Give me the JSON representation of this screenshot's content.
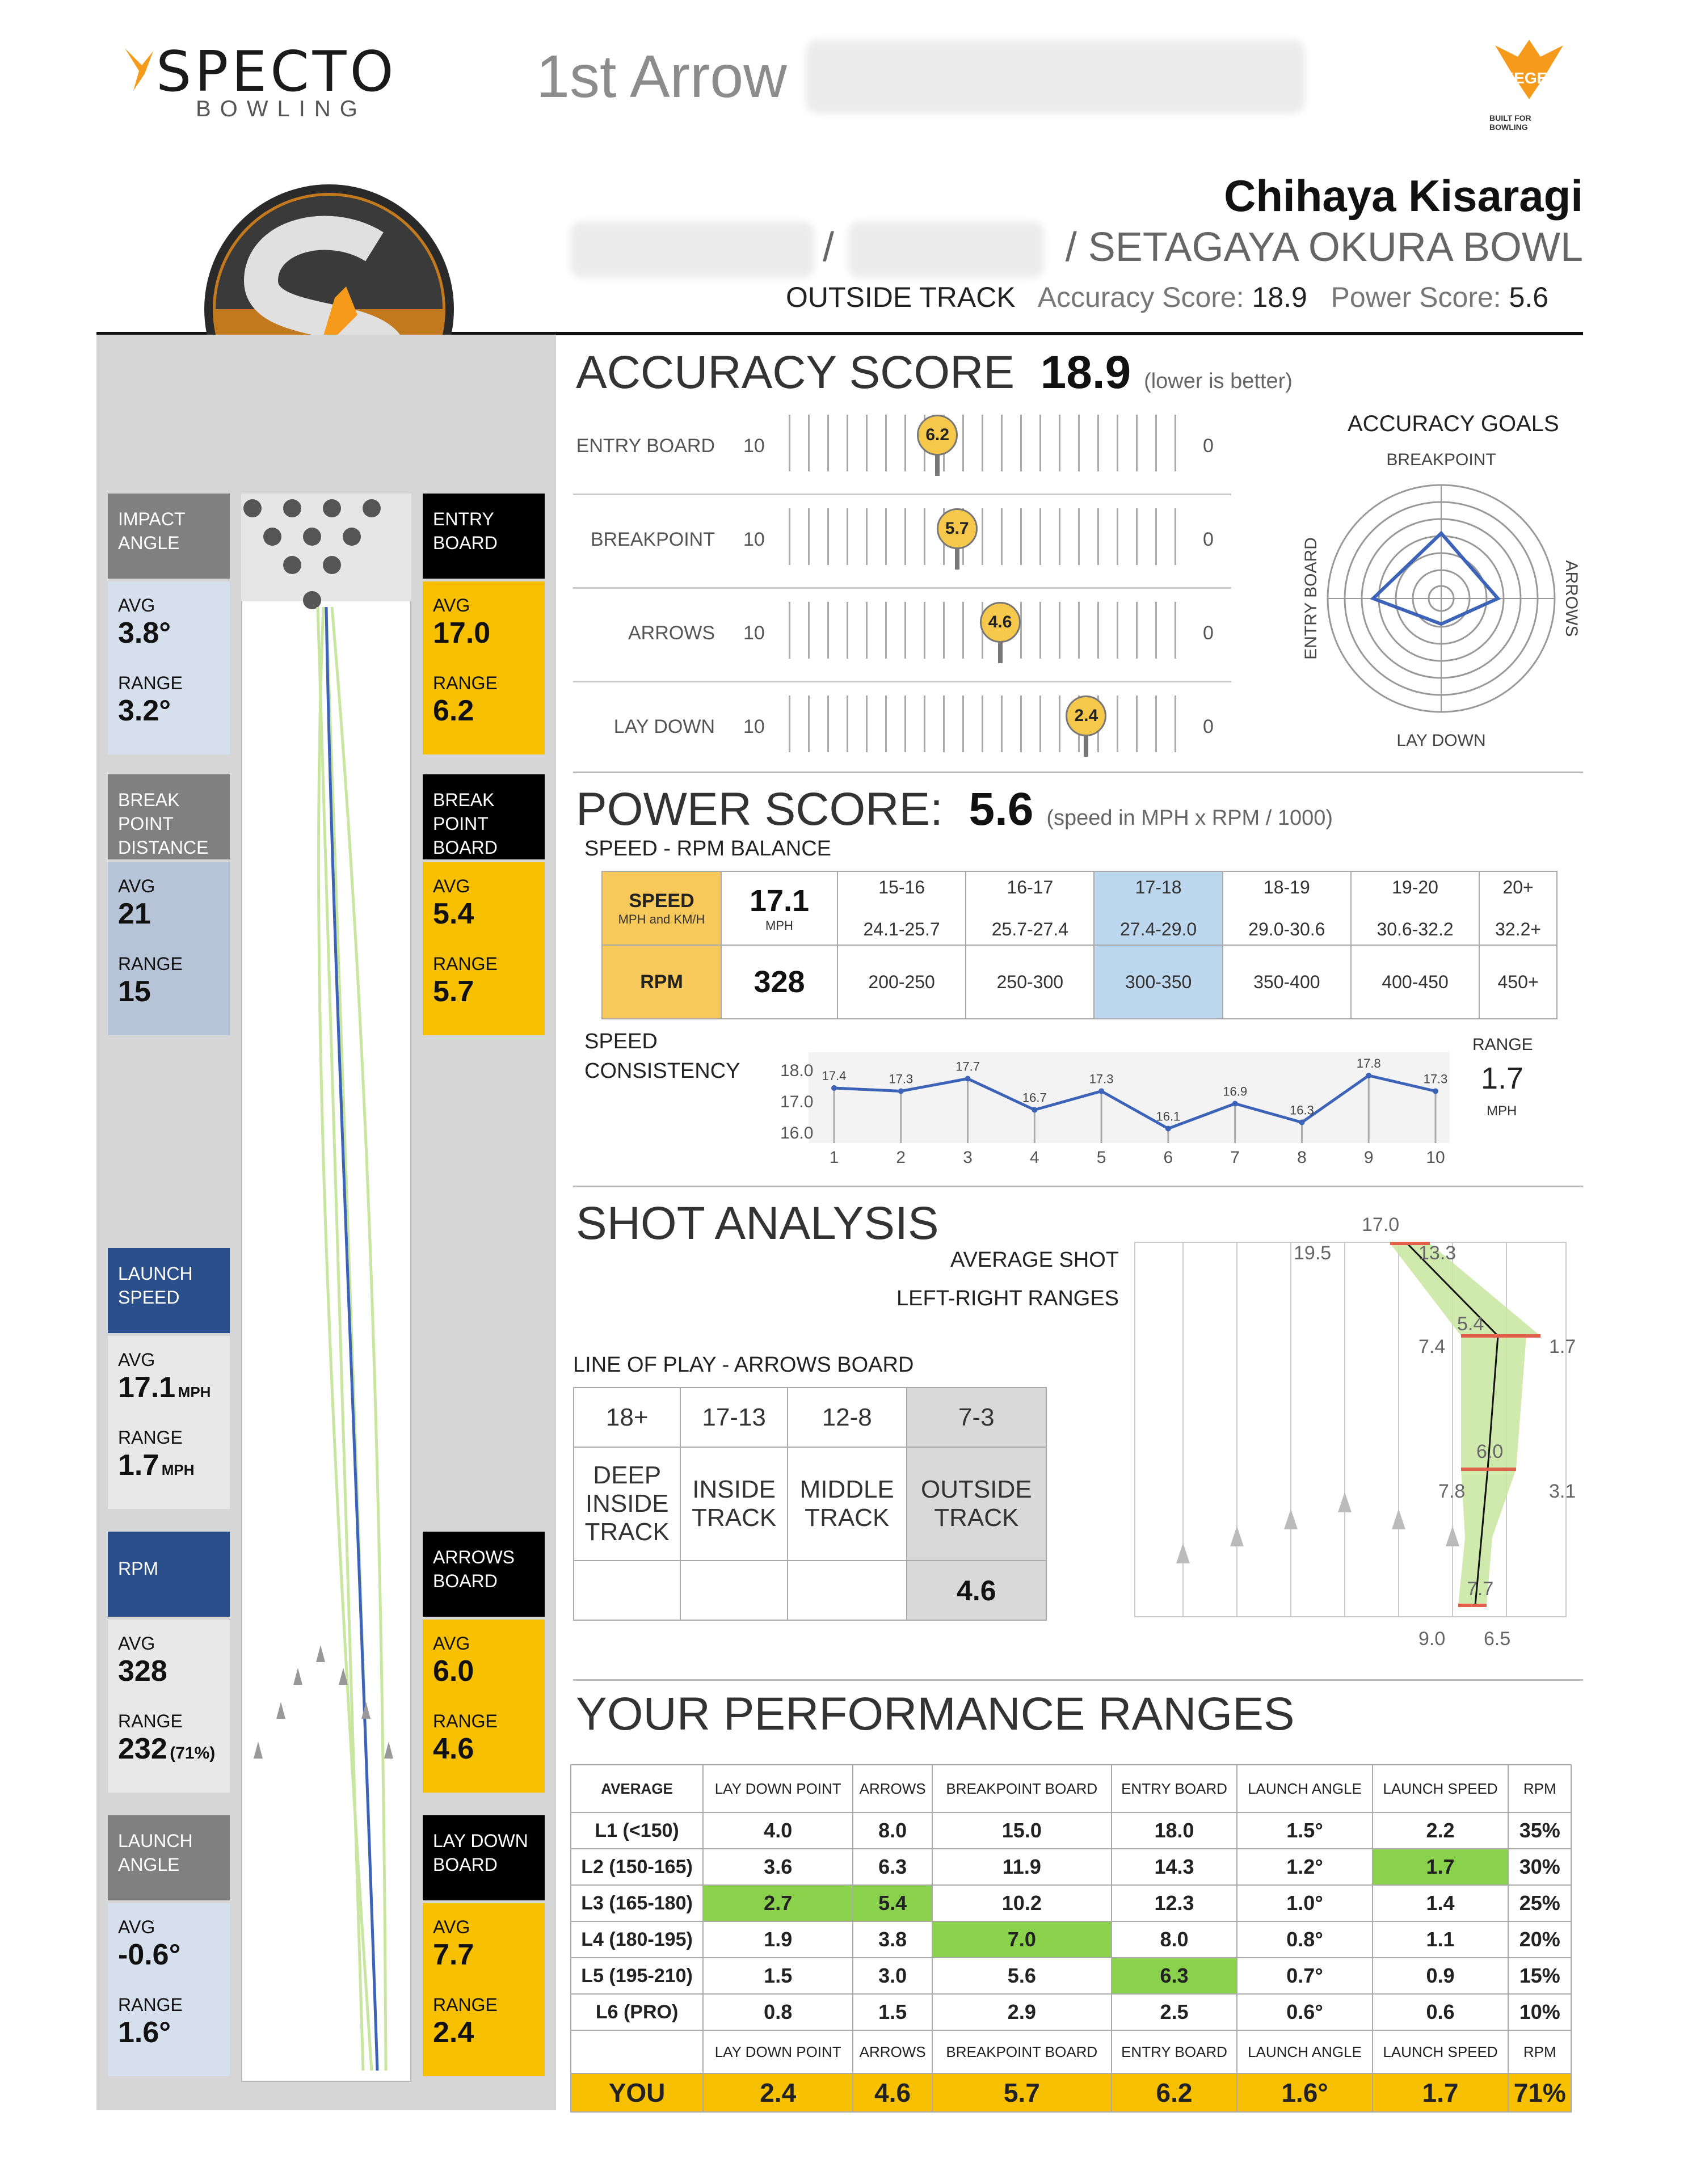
{
  "brand": {
    "name": "SPECTO",
    "sub": "BOWLING"
  },
  "header": {
    "title": "1st Arrow",
    "kegel_tag": "KEGEL",
    "kegel_sub": "BUILT FOR BOWLING"
  },
  "bowler": {
    "name": "Chihaya Kisaragi",
    "center_sep": "/",
    "center_sep2": "/ SETAGAYA OKURA BOWL",
    "track": "OUTSIDE TRACK",
    "accuracy_label": "Accuracy Score:",
    "accuracy": "18.9",
    "power_label": "Power Score:",
    "power": "5.6"
  },
  "left": {
    "impact": {
      "head": [
        "IMPACT",
        "ANGLE"
      ],
      "avg_k": "AVG",
      "avg": "3.8°",
      "range_k": "RANGE",
      "range": "3.2°"
    },
    "bpd": {
      "head": [
        "BREAK",
        "POINT",
        "DISTANCE"
      ],
      "avg_k": "AVG",
      "avg": "21",
      "range_k": "RANGE",
      "range": "15"
    },
    "speed": {
      "head": [
        "LAUNCH",
        "SPEED"
      ],
      "avg_k": "AVG",
      "avg": "17.1",
      "avg_u": "MPH",
      "range_k": "RANGE",
      "range": "1.7",
      "range_u": "MPH"
    },
    "rpm": {
      "head": [
        "RPM"
      ],
      "avg_k": "AVG",
      "avg": "328",
      "range_k": "RANGE",
      "range": "232",
      "range_u": "(71%)"
    },
    "launch": {
      "head": [
        "LAUNCH",
        "ANGLE"
      ],
      "avg_k": "AVG",
      "avg": "-0.6°",
      "range_k": "RANGE",
      "range": "1.6°"
    }
  },
  "right": {
    "entry": {
      "head": [
        "ENTRY",
        "BOARD"
      ],
      "avg_k": "AVG",
      "avg": "17.0",
      "range_k": "RANGE",
      "range": "6.2"
    },
    "bpb": {
      "head": [
        "BREAK",
        "POINT",
        "BOARD"
      ],
      "avg_k": "AVG",
      "avg": "5.4",
      "range_k": "RANGE",
      "range": "5.7"
    },
    "arrows": {
      "head": [
        "ARROWS",
        "BOARD"
      ],
      "avg_k": "AVG",
      "avg": "6.0",
      "range_k": "RANGE",
      "range": "4.6"
    },
    "laydown": {
      "head": [
        "LAY DOWN",
        "BOARD"
      ],
      "avg_k": "AVG",
      "avg": "7.7",
      "range_k": "RANGE",
      "range": "2.4"
    }
  },
  "accuracy": {
    "title": "ACCURACY SCORE",
    "value": "18.9",
    "note": "(lower is better)",
    "rows": [
      {
        "name": "ENTRY BOARD",
        "left": "10",
        "right": "0",
        "value": "6.2",
        "fraction": 0.38
      },
      {
        "name": "BREAKPOINT",
        "left": "10",
        "right": "0",
        "value": "5.7",
        "fraction": 0.43
      },
      {
        "name": "ARROWS",
        "left": "10",
        "right": "0",
        "value": "4.6",
        "fraction": 0.54
      },
      {
        "name": "LAY DOWN",
        "left": "10",
        "right": "0",
        "value": "2.4",
        "fraction": 0.76
      }
    ],
    "goals_title": "ACCURACY GOALS",
    "goals_axes": {
      "top": "BREAKPOINT",
      "right": "ARROWS",
      "bottom": "LAY DOWN",
      "left": "ENTRY BOARD"
    }
  },
  "power": {
    "title": "POWER SCORE:",
    "value": "5.6",
    "note": "(speed in MPH x RPM / 1000)",
    "balance_title": "SPEED - RPM BALANCE",
    "speed_label": "SPEED",
    "speed_units": "MPH and KM/H",
    "speed_value": "17.1",
    "speed_value_unit": "MPH",
    "rpm_label": "RPM",
    "rpm_value": "328",
    "speed_cols": [
      [
        "15-16",
        "24.1-25.7"
      ],
      [
        "16-17",
        "25.7-27.4"
      ],
      [
        "17-18",
        "27.4-29.0"
      ],
      [
        "18-19",
        "29.0-30.6"
      ],
      [
        "19-20",
        "30.6-32.2"
      ],
      [
        "20+",
        "32.2+"
      ]
    ],
    "rpm_cols": [
      "200-250",
      "250-300",
      "300-350",
      "350-400",
      "400-450",
      "450+"
    ],
    "highlight_col": 2,
    "consistency_title": [
      "SPEED",
      "CONSISTENCY"
    ],
    "range_label": "RANGE",
    "range_value": "1.7",
    "range_unit": "MPH"
  },
  "chart_data": {
    "type": "line",
    "x": [
      1,
      2,
      3,
      4,
      5,
      6,
      7,
      8,
      9,
      10
    ],
    "series": [
      {
        "values": [
          17.4,
          17.3,
          17.7,
          16.7,
          17.3,
          16.1,
          16.9,
          16.3,
          17.8,
          17.3
        ]
      }
    ],
    "ylim": [
      16.0,
      18.0
    ],
    "yticks": [
      "18.0",
      "17.0",
      "16.0"
    ],
    "color": "#3c63b8"
  },
  "shot": {
    "title": "SHOT ANALYSIS",
    "avg_shot": "AVERAGE SHOT",
    "lr_ranges": "LEFT-RIGHT RANGES",
    "lop_title": "LINE OF PLAY - ARROWS BOARD",
    "lop_heads": [
      "18+",
      "17-13",
      "12-8",
      "7-3"
    ],
    "lop_names": [
      [
        "DEEP",
        "INSIDE",
        "TRACK"
      ],
      [
        "INSIDE",
        "TRACK"
      ],
      [
        "MIDDLE",
        "TRACK"
      ],
      [
        "OUTSIDE",
        "TRACK"
      ]
    ],
    "lop_value": "4.6",
    "labels": {
      "entry": "17.0",
      "entry_l": "19.5",
      "entry_r": "13.3",
      "bp": "5.4",
      "bp_l": "7.4",
      "bp_r": "1.7",
      "ar": "6.0",
      "ar_l": "7.8",
      "ar_r": "3.1",
      "ld": "7.7",
      "ld_l": "9.0",
      "ld_r": "6.5"
    }
  },
  "perf": {
    "title": "YOUR PERFORMANCE RANGES",
    "heads": [
      "AVERAGE",
      "LAY DOWN POINT",
      "ARROWS",
      "BREAKPOINT BOARD",
      "ENTRY BOARD",
      "LAUNCH ANGLE",
      "LAUNCH SPEED",
      "RPM"
    ],
    "rows": [
      [
        "L1 (<150)",
        "4.0",
        "8.0",
        "15.0",
        "18.0",
        "1.5°",
        "2.2",
        "35%"
      ],
      [
        "L2 (150-165)",
        "3.6",
        "6.3",
        "11.9",
        "14.3",
        "1.2°",
        "1.7",
        "30%"
      ],
      [
        "L3 (165-180)",
        "2.7",
        "5.4",
        "10.2",
        "12.3",
        "1.0°",
        "1.4",
        "25%"
      ],
      [
        "L4 (180-195)",
        "1.9",
        "3.8",
        "7.0",
        "8.0",
        "0.8°",
        "1.1",
        "20%"
      ],
      [
        "L5 (195-210)",
        "1.5",
        "3.0",
        "5.6",
        "6.3",
        "0.7°",
        "0.9",
        "15%"
      ],
      [
        "L6 (PRO)",
        "0.8",
        "1.5",
        "2.9",
        "2.5",
        "0.6°",
        "0.6",
        "10%"
      ]
    ],
    "highlights": [
      [
        1,
        6
      ],
      [
        2,
        1
      ],
      [
        2,
        2
      ],
      [
        3,
        3
      ],
      [
        4,
        4
      ]
    ],
    "foot_heads": [
      "",
      "LAY DOWN POINT",
      "ARROWS",
      "BREAKPOINT BOARD",
      "ENTRY BOARD",
      "LAUNCH ANGLE",
      "LAUNCH SPEED",
      "RPM"
    ],
    "you": [
      "YOU",
      "2.4",
      "4.6",
      "5.7",
      "6.2",
      "1.6°",
      "1.7",
      "71%"
    ]
  },
  "colors": {
    "yellow": "#f7c000",
    "blue": "#2b4f8a",
    "highlight": "#8bd24c",
    "sky": "#bdd7ee"
  }
}
